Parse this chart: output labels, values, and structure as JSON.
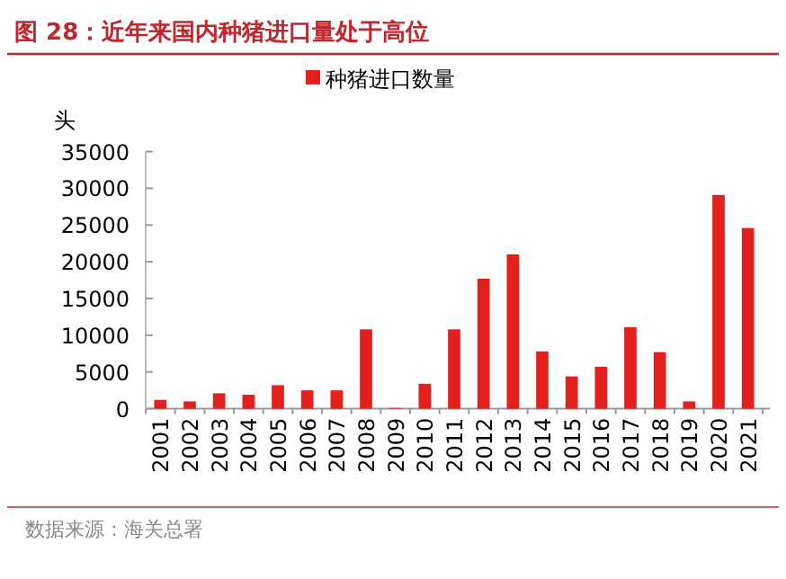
{
  "chart_data": {
    "type": "bar",
    "title": "图 28：近年来国内种猪进口量处于高位",
    "ylabel": "头",
    "categories": [
      "2001",
      "2002",
      "2003",
      "2004",
      "2005",
      "2006",
      "2007",
      "2008",
      "2009",
      "2010",
      "2011",
      "2012",
      "2013",
      "2014",
      "2015",
      "2016",
      "2017",
      "2018",
      "2019",
      "2020",
      "2021"
    ],
    "series": [
      {
        "name": "种猪进口数量",
        "color": "#e3201b",
        "values": [
          1200,
          1000,
          2100,
          1900,
          3200,
          2500,
          2500,
          10800,
          100,
          3400,
          10800,
          17700,
          21000,
          7800,
          4400,
          5700,
          11100,
          7700,
          1000,
          29100,
          24600
        ]
      }
    ],
    "ylim": [
      0,
      35000
    ],
    "yticks": [
      0,
      5000,
      10000,
      15000,
      20000,
      25000,
      30000,
      35000
    ],
    "legend": "top",
    "grid": false,
    "annotations": [
      "数据来源：海关总署"
    ]
  }
}
